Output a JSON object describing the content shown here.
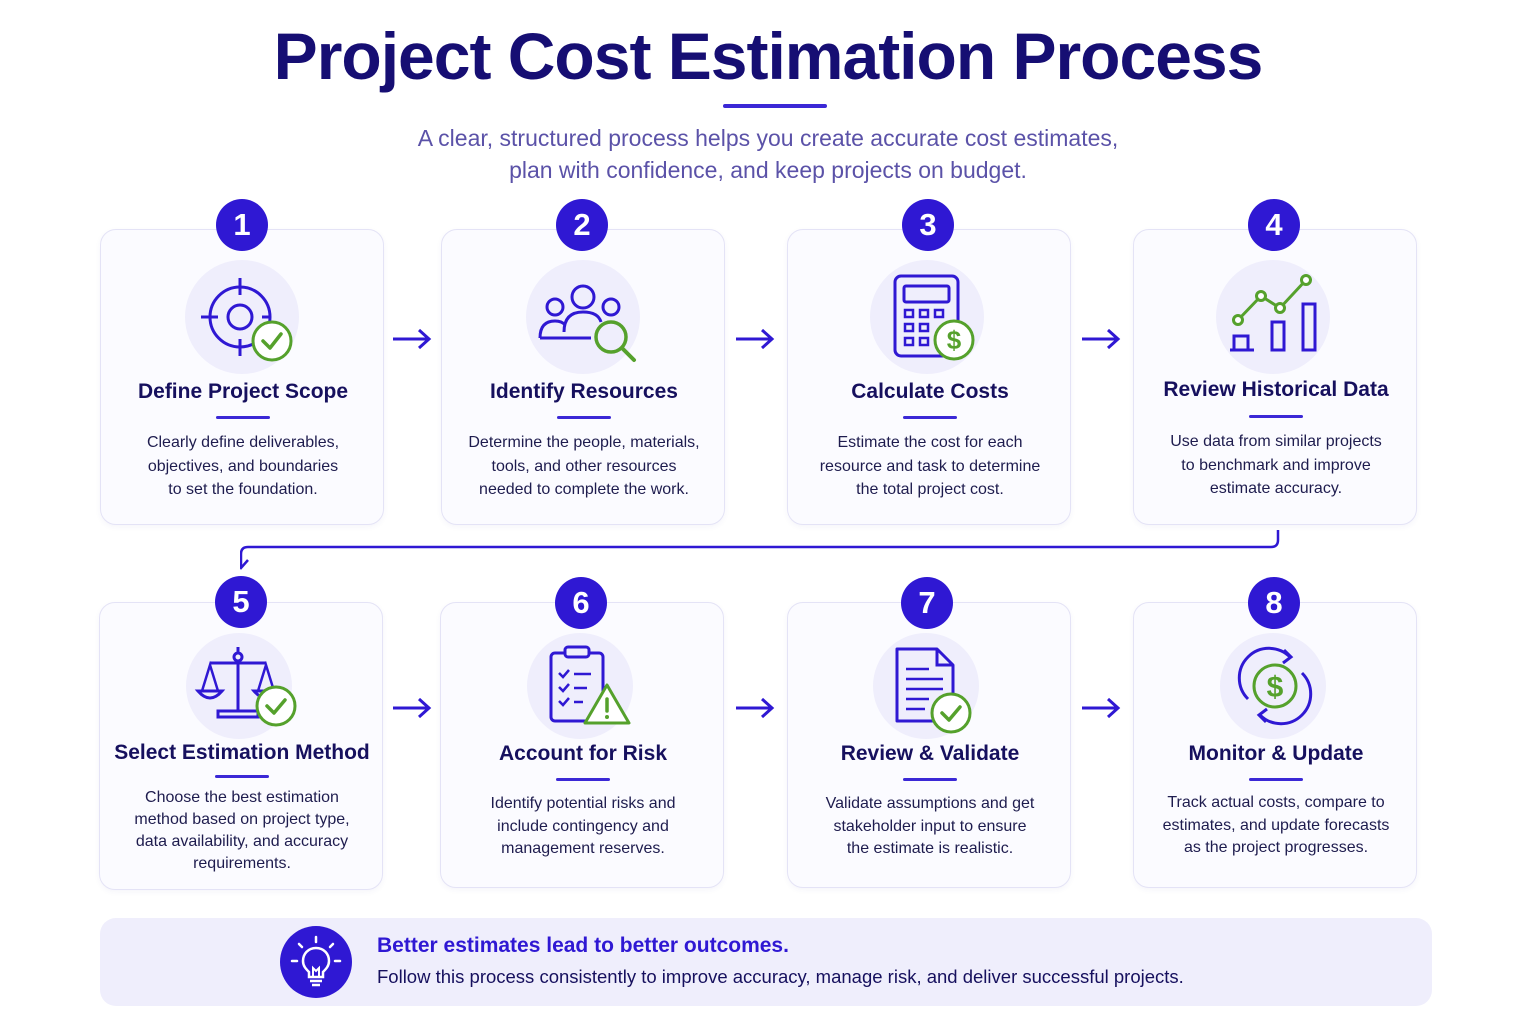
{
  "header": {
    "title": "Project Cost Estimation Process",
    "subtitle_line1": "A clear, structured process helps you create accurate cost estimates,",
    "subtitle_line2": "plan with confidence, and keep projects on budget."
  },
  "steps": [
    {
      "number": "1",
      "title": "Define Project Scope",
      "icon": "target-check-icon",
      "desc": [
        "Clearly define deliverables,",
        "objectives, and boundaries",
        "to set the foundation."
      ]
    },
    {
      "number": "2",
      "title": "Identify Resources",
      "icon": "people-search-icon",
      "desc": [
        "Determine the people, materials,",
        "tools, and other resources",
        "needed to complete the work."
      ]
    },
    {
      "number": "3",
      "title": "Calculate Costs",
      "icon": "calculator-dollar-icon",
      "desc": [
        "Estimate the cost for each",
        "resource and task to determine",
        "the total project cost."
      ]
    },
    {
      "number": "4",
      "title": "Review Historical Data",
      "icon": "chart-trend-icon",
      "desc": [
        "Use data from similar projects",
        "to benchmark and improve",
        "estimate accuracy."
      ]
    },
    {
      "number": "5",
      "title": "Select Estimation Method",
      "icon": "scale-check-icon",
      "desc": [
        "Choose the best estimation",
        "method based on project type,",
        "data availability, and accuracy",
        "requirements."
      ]
    },
    {
      "number": "6",
      "title": "Account for Risk",
      "icon": "clipboard-warning-icon",
      "desc": [
        "Identify potential risks and",
        "include contingency and",
        "management reserves."
      ]
    },
    {
      "number": "7",
      "title": "Review & Validate",
      "icon": "document-check-icon",
      "desc": [
        "Validate assumptions and get",
        "stakeholder input to ensure",
        "the estimate is realistic."
      ]
    },
    {
      "number": "8",
      "title": "Monitor & Update",
      "icon": "dollar-cycle-icon",
      "desc": [
        "Track actual costs, compare to",
        "estimates, and update forecasts",
        "as the project progresses."
      ]
    }
  ],
  "banner": {
    "icon": "lightbulb-icon",
    "headline": "Better estimates lead to better outcomes.",
    "text": "Follow this process consistently to improve accuracy, manage risk, and deliver successful projects."
  },
  "colors": {
    "primary": "#2f18d3",
    "title": "#160e73",
    "accent_green": "#55a12c",
    "card_border": "#e4e3f6",
    "icon_bg": "#efeefc"
  }
}
